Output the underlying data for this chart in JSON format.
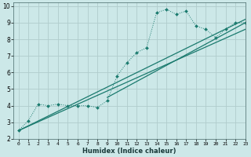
{
  "xlabel": "Humidex (Indice chaleur)",
  "bg_color": "#cce8e8",
  "grid_color": "#b0cccc",
  "line_color": "#1a7a6e",
  "xlim": [
    -0.5,
    23
  ],
  "ylim": [
    2,
    10.2
  ],
  "xticks": [
    0,
    1,
    2,
    3,
    4,
    5,
    6,
    7,
    8,
    9,
    10,
    11,
    12,
    13,
    14,
    15,
    16,
    17,
    18,
    19,
    20,
    21,
    22,
    23
  ],
  "yticks": [
    2,
    3,
    4,
    5,
    6,
    7,
    8,
    9,
    10
  ],
  "series1_x": [
    0,
    1,
    2,
    3,
    4,
    5,
    6,
    7,
    8,
    9,
    10,
    11,
    12,
    13,
    14,
    15,
    16,
    17,
    18,
    19,
    20,
    21,
    22,
    23
  ],
  "series1_y": [
    2.5,
    3.1,
    4.1,
    4.0,
    4.1,
    4.0,
    4.0,
    4.0,
    3.9,
    4.3,
    5.8,
    6.6,
    7.2,
    7.5,
    9.6,
    9.8,
    9.5,
    9.7,
    8.8,
    8.6,
    8.1,
    8.6,
    9.0,
    9.0
  ],
  "series2_x": [
    0,
    23
  ],
  "series2_y": [
    2.5,
    9.2
  ],
  "series3_x": [
    0,
    23
  ],
  "series3_y": [
    2.5,
    8.6
  ],
  "series4_x": [
    9,
    23
  ],
  "series4_y": [
    4.5,
    9.0
  ]
}
